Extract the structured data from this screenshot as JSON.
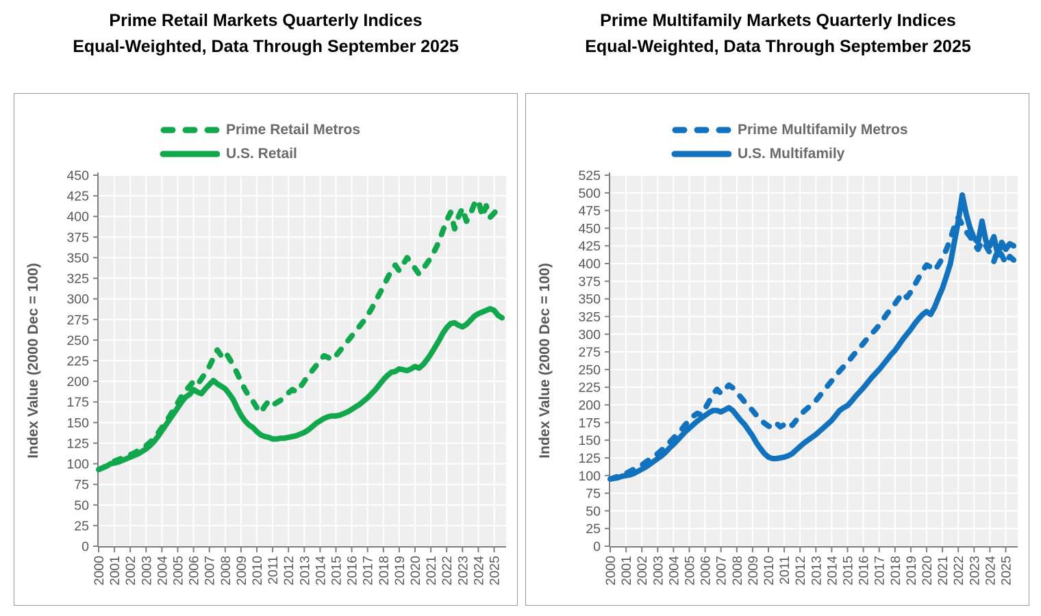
{
  "page": {
    "background": "#ffffff"
  },
  "chart_data": [
    {
      "type": "line",
      "title": "Prime Retail Markets Quarterly Indices",
      "subtitle": "Equal-Weighted, Data Through September 2025",
      "ylabel": "Index Value (2000 Dec = 100)",
      "ylim": [
        0,
        450
      ],
      "ytick_step": 25,
      "xtick_labels": [
        "2000",
        "2001",
        "2002",
        "2003",
        "2004",
        "2005",
        "2006",
        "2007",
        "2008",
        "2009",
        "2010",
        "2011",
        "2012",
        "2013",
        "2014",
        "2015",
        "2016",
        "2017",
        "2018",
        "2019",
        "2020",
        "2021",
        "2022",
        "2023",
        "2024",
        "2025"
      ],
      "x_start": 2000,
      "x_step_years": 0.25,
      "grid": true,
      "legend_position": "top-center",
      "accent_color": "#12A74D",
      "plot_bg": "#efefef",
      "grid_color": "#ffffff",
      "axis_color": "#7f7f7f",
      "tick_label_color": "#595959",
      "series": [
        {
          "name": "Prime Retail Metros",
          "style": "dashed",
          "color": "#12A74D",
          "values": [
            93,
            95,
            98,
            101,
            103,
            105,
            107,
            109,
            111,
            113,
            116,
            119,
            122,
            126,
            131,
            137,
            144,
            151,
            158,
            166,
            174,
            182,
            189,
            194,
            200,
            196,
            203,
            210,
            218,
            228,
            238,
            231,
            236,
            228,
            220,
            210,
            200,
            190,
            182,
            176,
            168,
            162,
            170,
            176,
            171,
            174,
            177,
            181,
            186,
            190,
            187,
            193,
            200,
            207,
            213,
            219,
            226,
            231,
            229,
            226,
            231,
            237,
            243,
            249,
            255,
            261,
            267,
            273,
            280,
            288,
            297,
            306,
            315,
            325,
            334,
            341,
            334,
            342,
            350,
            344,
            337,
            330,
            336,
            343,
            350,
            359,
            369,
            382,
            395,
            405,
            385,
            400,
            410,
            394,
            403,
            415,
            420,
            400,
            413,
            399,
            404,
            410,
            405
          ]
        },
        {
          "name": "U.S. Retail",
          "style": "solid",
          "color": "#12A74D",
          "values": [
            93,
            95,
            97,
            100,
            101,
            102,
            104,
            106,
            108,
            110,
            112,
            115,
            118,
            122,
            127,
            133,
            140,
            147,
            154,
            161,
            168,
            175,
            181,
            184,
            190,
            187,
            185,
            191,
            196,
            201,
            197,
            194,
            191,
            185,
            178,
            168,
            159,
            152,
            147,
            144,
            139,
            135,
            133,
            132,
            130,
            130,
            131,
            131,
            132,
            133,
            134,
            136,
            138,
            141,
            145,
            149,
            152,
            155,
            157,
            158,
            158,
            159,
            161,
            163,
            166,
            169,
            172,
            176,
            180,
            185,
            190,
            196,
            202,
            207,
            211,
            212,
            215,
            214,
            213,
            215,
            218,
            216,
            220,
            226,
            233,
            241,
            249,
            258,
            265,
            270,
            271,
            268,
            266,
            269,
            274,
            279,
            282,
            284,
            286,
            288,
            286,
            280,
            277
          ]
        }
      ]
    },
    {
      "type": "line",
      "title": "Prime Multifamily Markets Quarterly Indices",
      "subtitle": "Equal-Weighted, Data Through September 2025",
      "ylabel": "Index Value (2000 Dec = 100)",
      "ylim": [
        0,
        525
      ],
      "ytick_step": 25,
      "xtick_labels": [
        "2000",
        "2001",
        "2002",
        "2003",
        "2004",
        "2005",
        "2006",
        "2007",
        "2008",
        "2009",
        "2010",
        "2011",
        "2012",
        "2013",
        "2014",
        "2015",
        "2016",
        "2017",
        "2018",
        "2019",
        "2020",
        "2021",
        "2022",
        "2023",
        "2024",
        "2025"
      ],
      "x_start": 2000,
      "x_step_years": 0.25,
      "grid": true,
      "legend_position": "top-center",
      "accent_color": "#1272BD",
      "plot_bg": "#efefef",
      "grid_color": "#ffffff",
      "axis_color": "#7f7f7f",
      "tick_label_color": "#595959",
      "series": [
        {
          "name": "Prime Multifamily Metros",
          "style": "dashed",
          "color": "#1272BD",
          "values": [
            95,
            97,
            99,
            101,
            103,
            106,
            109,
            112,
            115,
            119,
            123,
            127,
            131,
            136,
            141,
            147,
            153,
            159,
            165,
            172,
            178,
            184,
            188,
            186,
            195,
            205,
            215,
            222,
            216,
            222,
            228,
            224,
            217,
            211,
            204,
            198,
            192,
            185,
            179,
            174,
            170,
            168,
            174,
            169,
            172,
            176,
            171,
            178,
            185,
            191,
            196,
            200,
            206,
            213,
            220,
            227,
            234,
            241,
            248,
            254,
            260,
            267,
            274,
            280,
            287,
            294,
            300,
            306,
            313,
            321,
            329,
            336,
            343,
            351,
            358,
            352,
            360,
            370,
            380,
            390,
            398,
            395,
            390,
            398,
            408,
            420,
            435,
            452,
            465,
            455,
            445,
            438,
            428,
            420,
            432,
            425,
            415,
            403,
            420,
            412,
            400,
            410,
            405
          ]
        },
        {
          "name": "U.S. Multifamily",
          "style": "solid",
          "color": "#1272BD",
          "values": [
            95,
            96,
            97,
            99,
            100,
            101,
            103,
            106,
            109,
            112,
            116,
            120,
            124,
            128,
            133,
            139,
            144,
            150,
            156,
            162,
            167,
            172,
            177,
            181,
            185,
            189,
            192,
            192,
            190,
            193,
            196,
            192,
            185,
            178,
            172,
            164,
            156,
            146,
            138,
            131,
            126,
            124,
            124,
            125,
            126,
            128,
            131,
            136,
            141,
            146,
            150,
            154,
            158,
            163,
            168,
            173,
            178,
            185,
            192,
            196,
            199,
            205,
            212,
            218,
            224,
            231,
            238,
            244,
            250,
            257,
            264,
            271,
            277,
            285,
            293,
            300,
            307,
            315,
            322,
            328,
            332,
            328,
            338,
            352,
            365,
            382,
            400,
            430,
            460,
            497,
            470,
            450,
            436,
            430,
            460,
            432,
            425,
            438,
            412,
            430,
            420,
            428,
            425
          ]
        }
      ]
    }
  ]
}
